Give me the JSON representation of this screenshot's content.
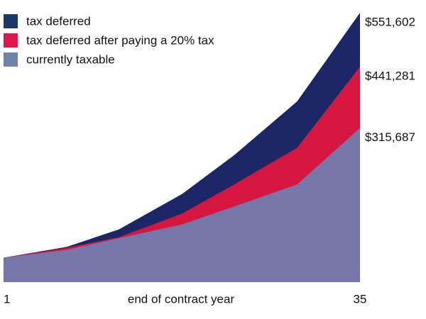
{
  "chart_data": {
    "type": "area",
    "x_label": "end of contract year",
    "x": [
      1,
      7,
      12,
      18,
      23,
      29,
      35
    ],
    "xlim": [
      1,
      35
    ],
    "xticks": [
      1,
      35
    ],
    "ylim": [
      0,
      551602
    ],
    "legend": "top-left",
    "series": [
      {
        "name": "tax deferred",
        "color": "#1c2566",
        "legend_color": "#1b3a6b",
        "values": [
          50000,
          72000,
          108000,
          180000,
          260000,
          370000,
          551602
        ],
        "value_labels": [
          null,
          null,
          null,
          null,
          null,
          null,
          "$551,602"
        ]
      },
      {
        "name": "tax deferred after paying a 20% tax",
        "color": "#d5173f",
        "legend_color": "#e0174a",
        "values": [
          50000,
          70000,
          92000,
          140000,
          200000,
          275000,
          441281
        ],
        "value_labels": [
          null,
          null,
          null,
          null,
          null,
          null,
          "$441,281"
        ]
      },
      {
        "name": "currently taxable",
        "color": "#7677a8",
        "legend_color": "#6f82a8",
        "values": [
          50000,
          66000,
          90000,
          118000,
          155000,
          200000,
          315687
        ],
        "value_labels": [
          null,
          null,
          null,
          null,
          null,
          null,
          "$315,687"
        ]
      }
    ]
  }
}
